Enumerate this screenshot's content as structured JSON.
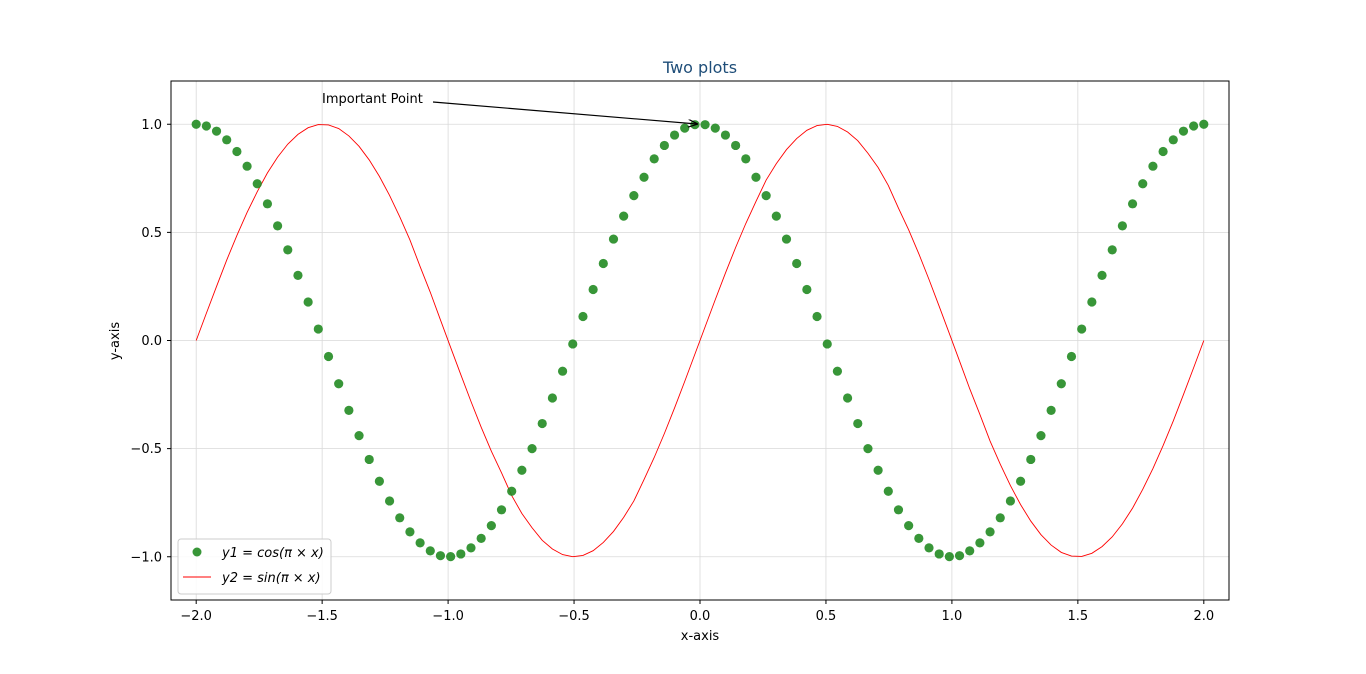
{
  "chart_data": {
    "type": "scatter",
    "title": "Two plots",
    "title_color": "#1f4e79",
    "xlabel": "x-axis",
    "ylabel": "y-axis",
    "xlim": [
      -2.1,
      2.1
    ],
    "ylim": [
      -1.2,
      1.2
    ],
    "xticks": [
      -2.0,
      -1.5,
      -1.0,
      -0.5,
      0.0,
      0.5,
      1.0,
      1.5,
      2.0
    ],
    "xtick_labels": [
      "−2.0",
      "−1.5",
      "−1.0",
      "−0.5",
      "0.0",
      "0.5",
      "1.0",
      "1.5",
      "2.0"
    ],
    "yticks": [
      -1.0,
      -0.5,
      0.0,
      0.5,
      1.0
    ],
    "ytick_labels": [
      "−1.0",
      "−0.5",
      "0.0",
      "0.5",
      "1.0"
    ],
    "grid": true,
    "legend_position": "lower-left",
    "annotation": {
      "text": "Important Point",
      "text_xy": [
        -1.5,
        1.1
      ],
      "point_xy": [
        0.0,
        1.0
      ]
    },
    "series": [
      {
        "name": "y1 = cos(π × x)",
        "kind": "scatter",
        "color": "#228b22",
        "x_range": [
          -2.0,
          2.0
        ],
        "num_points": 100,
        "function": "cos(pi*x)",
        "x": [
          -2.0,
          -1.9596,
          -1.9192,
          -1.8788,
          -1.8384,
          -1.798,
          -1.7576,
          -1.7172,
          -1.6768,
          -1.6364,
          -1.596,
          -1.5556,
          -1.5152,
          -1.4747,
          -1.4343,
          -1.3939,
          -1.3535,
          -1.3131,
          -1.2727,
          -1.2323,
          -1.1919,
          -1.1515,
          -1.1111,
          -1.0707,
          -1.0303,
          -0.9899,
          -0.9495,
          -0.9091,
          -0.8687,
          -0.8283,
          -0.7879,
          -0.7475,
          -0.7071,
          -0.6667,
          -0.6263,
          -0.5859,
          -0.5455,
          -0.5051,
          -0.4646,
          -0.4242,
          -0.3838,
          -0.3434,
          -0.303,
          -0.2626,
          -0.2222,
          -0.1818,
          -0.1414,
          -0.101,
          -0.0606,
          -0.0202,
          0.0202,
          0.0606,
          0.101,
          0.1414,
          0.1818,
          0.2222,
          0.2626,
          0.303,
          0.3434,
          0.3838,
          0.4242,
          0.4646,
          0.5051,
          0.5455,
          0.5859,
          0.6263,
          0.6667,
          0.7071,
          0.7475,
          0.7879,
          0.8283,
          0.8687,
          0.9091,
          0.9495,
          0.9899,
          1.0303,
          1.0707,
          1.1111,
          1.1515,
          1.1919,
          1.2323,
          1.2727,
          1.3131,
          1.3535,
          1.3939,
          1.4343,
          1.4747,
          1.5152,
          1.5556,
          1.596,
          1.6364,
          1.6768,
          1.7172,
          1.7576,
          1.798,
          1.8384,
          1.8788,
          1.9192,
          1.9596,
          2.0
        ],
        "y": [
          1.0,
          0.992,
          0.968,
          0.928,
          0.874,
          0.806,
          0.725,
          0.632,
          0.53,
          0.419,
          0.301,
          0.178,
          0.053,
          -0.074,
          -0.2,
          -0.323,
          -0.44,
          -0.55,
          -0.651,
          -0.742,
          -0.82,
          -0.885,
          -0.936,
          -0.973,
          -0.995,
          -0.9995,
          -0.987,
          -0.959,
          -0.915,
          -0.856,
          -0.783,
          -0.697,
          -0.6,
          -0.5,
          -0.384,
          -0.266,
          -0.142,
          -0.016,
          0.111,
          0.236,
          0.356,
          0.469,
          0.575,
          0.67,
          0.755,
          0.84,
          0.902,
          0.95,
          0.982,
          0.998,
          0.998,
          0.982,
          0.95,
          0.902,
          0.84,
          0.755,
          0.67,
          0.575,
          0.469,
          0.356,
          0.236,
          0.111,
          -0.016,
          -0.142,
          -0.266,
          -0.384,
          -0.5,
          -0.6,
          -0.697,
          -0.783,
          -0.856,
          -0.915,
          -0.959,
          -0.987,
          -0.9995,
          -0.995,
          -0.973,
          -0.936,
          -0.885,
          -0.82,
          -0.742,
          -0.651,
          -0.55,
          -0.44,
          -0.323,
          -0.2,
          -0.074,
          0.053,
          0.178,
          0.301,
          0.419,
          0.53,
          0.632,
          0.725,
          0.806,
          0.874,
          0.928,
          0.968,
          0.992,
          1.0
        ]
      },
      {
        "name": "y2 = sin(π × x)",
        "kind": "line",
        "color": "#ff0000",
        "x_range": [
          -2.0,
          2.0
        ],
        "num_points": 100,
        "function": "sin(pi*x)",
        "x": [
          -2.0,
          -1.9596,
          -1.9192,
          -1.8788,
          -1.8384,
          -1.798,
          -1.7576,
          -1.7172,
          -1.6768,
          -1.6364,
          -1.596,
          -1.5556,
          -1.5152,
          -1.4747,
          -1.4343,
          -1.3939,
          -1.3535,
          -1.3131,
          -1.2727,
          -1.2323,
          -1.1919,
          -1.1515,
          -1.1111,
          -1.0707,
          -1.0303,
          -0.9899,
          -0.9495,
          -0.9091,
          -0.8687,
          -0.8283,
          -0.7879,
          -0.7475,
          -0.7071,
          -0.6667,
          -0.6263,
          -0.5859,
          -0.5455,
          -0.5051,
          -0.4646,
          -0.4242,
          -0.3838,
          -0.3434,
          -0.303,
          -0.2626,
          -0.2222,
          -0.1818,
          -0.1414,
          -0.101,
          -0.0606,
          -0.0202,
          0.0202,
          0.0606,
          0.101,
          0.1414,
          0.1818,
          0.2222,
          0.2626,
          0.303,
          0.3434,
          0.3838,
          0.4242,
          0.4646,
          0.5051,
          0.5455,
          0.5859,
          0.6263,
          0.6667,
          0.7071,
          0.7475,
          0.7879,
          0.8283,
          0.8687,
          0.9091,
          0.9495,
          0.9899,
          1.0303,
          1.0707,
          1.1111,
          1.1515,
          1.1919,
          1.2323,
          1.2727,
          1.3131,
          1.3535,
          1.3939,
          1.4343,
          1.4747,
          1.5152,
          1.5556,
          1.596,
          1.6364,
          1.6768,
          1.7172,
          1.7576,
          1.798,
          1.8384,
          1.8788,
          1.9192,
          1.9596,
          2.0
        ],
        "y": [
          0.0,
          0.126,
          0.25,
          0.372,
          0.486,
          0.592,
          0.688,
          0.775,
          0.848,
          0.908,
          0.953,
          0.984,
          0.9986,
          0.997,
          0.98,
          0.946,
          0.898,
          0.835,
          0.759,
          0.671,
          0.572,
          0.465,
          0.342,
          0.223,
          0.095,
          -0.032,
          -0.158,
          -0.282,
          -0.401,
          -0.512,
          -0.612,
          -0.717,
          -0.8,
          -0.866,
          -0.924,
          -0.964,
          -0.99,
          -0.9999,
          -0.994,
          -0.972,
          -0.934,
          -0.883,
          -0.818,
          -0.742,
          -0.643,
          -0.541,
          -0.43,
          -0.312,
          -0.189,
          -0.063,
          0.063,
          0.189,
          0.312,
          0.43,
          0.541,
          0.643,
          0.742,
          0.818,
          0.883,
          0.934,
          0.972,
          0.994,
          0.9999,
          0.99,
          0.964,
          0.924,
          0.866,
          0.8,
          0.717,
          0.612,
          0.512,
          0.401,
          0.282,
          0.158,
          0.032,
          -0.095,
          -0.223,
          -0.342,
          -0.465,
          -0.572,
          -0.671,
          -0.759,
          -0.835,
          -0.898,
          -0.946,
          -0.98,
          -0.997,
          -0.9986,
          -0.984,
          -0.953,
          -0.908,
          -0.848,
          -0.775,
          -0.688,
          -0.592,
          -0.486,
          -0.372,
          -0.25,
          -0.126,
          0.0
        ]
      }
    ]
  }
}
